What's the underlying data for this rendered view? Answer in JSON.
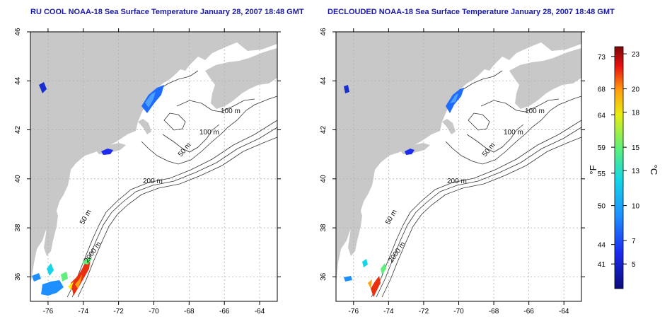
{
  "titles": [
    "RU COOL NOAA-18 Sea Surface Temperature January 28, 2007 18:48 GMT",
    "DECLOUDED NOAA-18 Sea Surface Temperature January 28, 2007 18:48 GMT"
  ],
  "axes": {
    "lon_ticks": [
      "-76",
      "-74",
      "-72",
      "-70",
      "-68",
      "-66",
      "-64"
    ],
    "lat_ticks": [
      "36",
      "38",
      "40",
      "42",
      "44",
      "46"
    ]
  },
  "contour_labels": [
    "100 m",
    "100 m",
    "50 m",
    "200 m",
    "50 m",
    "2000 m"
  ],
  "colorbar": {
    "f_label": "°F",
    "c_label": "°C",
    "f_ticks": [
      "73",
      "68",
      "64",
      "59",
      "55",
      "50",
      "44",
      "41"
    ],
    "c_ticks": [
      "23",
      "20",
      "18",
      "15",
      "13",
      "10",
      "7",
      "5"
    ]
  },
  "colors": {
    "land": "#c8c8c8",
    "title": "#1a1aa8",
    "grid": "#b0b0b0",
    "contour": "#333333"
  }
}
